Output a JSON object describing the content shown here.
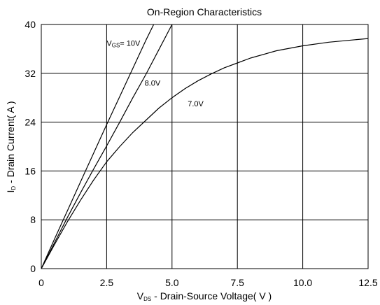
{
  "chart_data": {
    "type": "line",
    "title": "On-Region Characteristics",
    "xlabel": {
      "main": "V",
      "sub": "DS",
      "rest": " - Drain-Source Voltage( V )"
    },
    "ylabel": {
      "main": "I",
      "sub": "D",
      "rest": " - Drain Current( A )"
    },
    "xlim": [
      0,
      12.5
    ],
    "ylim": [
      0,
      40
    ],
    "xticks": [
      0,
      2.5,
      5.0,
      7.5,
      10.0,
      12.5
    ],
    "xtick_labels": [
      "0",
      "2.5",
      "5.0",
      "7.5",
      "10.0",
      "12.5"
    ],
    "yticks": [
      0,
      8,
      16,
      24,
      32,
      40
    ],
    "ytick_labels": [
      "0",
      "8",
      "16",
      "24",
      "32",
      "40"
    ],
    "grid": true,
    "line_color": "#000000",
    "series": [
      {
        "name": "10V",
        "x": [
          0,
          0.5,
          1.0,
          1.5,
          2.0,
          2.5,
          3.0,
          3.5,
          4.0,
          4.3
        ],
        "y": [
          0,
          4.8,
          9.5,
          14.2,
          18.9,
          23.6,
          28.2,
          32.8,
          37.4,
          40.0
        ]
      },
      {
        "name": "8.0V",
        "x": [
          0,
          0.5,
          1.0,
          1.5,
          2.0,
          2.5,
          3.0,
          3.5,
          4.0,
          4.5,
          5.0
        ],
        "y": [
          0,
          4.2,
          8.4,
          12.4,
          16.3,
          20.1,
          24.0,
          28.0,
          31.8,
          35.9,
          40.0
        ]
      },
      {
        "name": "7.0V",
        "x": [
          0,
          0.5,
          1.0,
          1.5,
          2.0,
          2.5,
          3.0,
          3.5,
          4.0,
          4.5,
          5.0,
          5.5,
          6.0,
          6.5,
          7.0,
          7.5,
          8.0,
          9.0,
          10.0,
          11.0,
          12.0,
          12.5
        ],
        "y": [
          0,
          3.9,
          7.7,
          11.2,
          14.5,
          17.5,
          20.0,
          22.3,
          24.3,
          26.3,
          28.0,
          29.5,
          30.8,
          31.9,
          32.9,
          33.7,
          34.5,
          35.7,
          36.5,
          37.1,
          37.5,
          37.7
        ]
      }
    ],
    "annotations": [
      {
        "label_main": "V",
        "label_sub": "GS",
        "label_rest": "= 10V",
        "x": 2.5,
        "y": 36.5
      },
      {
        "label_main": "8.0V",
        "x": 3.95,
        "y": 30.0
      },
      {
        "label_main": "7.0V",
        "x": 5.6,
        "y": 26.6
      }
    ]
  }
}
